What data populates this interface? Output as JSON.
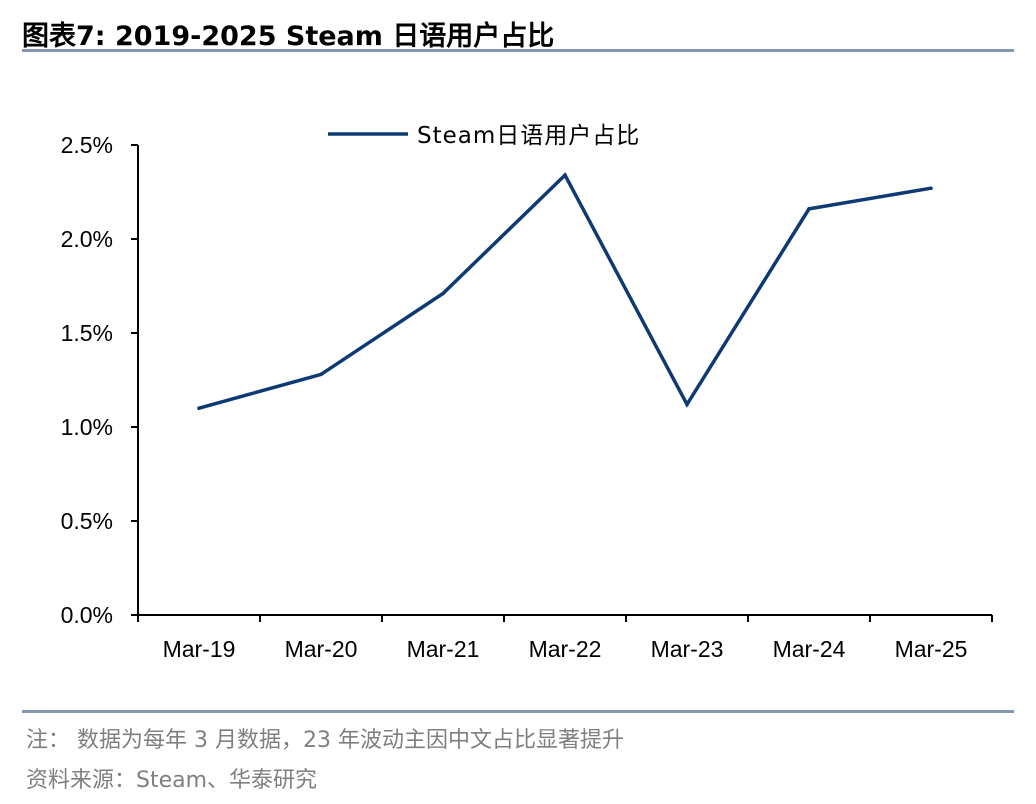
{
  "header": {
    "title": "图表7:  2019-2025 Steam 日语用户占比"
  },
  "chart_data": {
    "type": "line",
    "categories": [
      "Mar-19",
      "Mar-20",
      "Mar-21",
      "Mar-22",
      "Mar-23",
      "Mar-24",
      "Mar-25"
    ],
    "series": [
      {
        "name": "Steam日语用户占比",
        "values": [
          1.1,
          1.28,
          1.71,
          2.34,
          1.12,
          2.16,
          2.27
        ]
      }
    ],
    "y_ticks": [
      "0.0%",
      "0.5%",
      "1.0%",
      "1.5%",
      "2.0%",
      "2.5%"
    ],
    "ylim": [
      0,
      2.5
    ],
    "y_unit": "%",
    "grid": false,
    "legend_position": "top",
    "color": "#0e3a73"
  },
  "footer": {
    "note": "注： 数据为每年 3 月数据，23 年波动主因中文占比显著提升",
    "source": "资料来源：Steam、华泰研究"
  }
}
